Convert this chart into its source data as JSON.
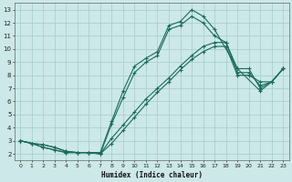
{
  "xlabel": "Humidex (Indice chaleur)",
  "background_color": "#cce8e8",
  "grid_color": "#aacfcf",
  "line_color": "#1a6b5a",
  "xlim": [
    -0.5,
    23.5
  ],
  "ylim": [
    1.5,
    13.5
  ],
  "xticks": [
    0,
    1,
    2,
    3,
    4,
    5,
    6,
    7,
    8,
    9,
    10,
    11,
    12,
    13,
    14,
    15,
    16,
    17,
    18,
    19,
    20,
    21,
    22,
    23
  ],
  "yticks": [
    2,
    3,
    4,
    5,
    6,
    7,
    8,
    9,
    10,
    11,
    12,
    13
  ],
  "lines": [
    {
      "x": [
        0,
        1,
        2,
        3,
        4,
        5,
        6,
        7,
        8,
        9,
        10,
        11,
        12,
        13,
        14,
        15,
        16,
        17,
        19,
        21,
        22,
        23
      ],
      "y": [
        3,
        2.8,
        2.5,
        2.3,
        2.1,
        2.1,
        2.1,
        2.1,
        4.5,
        6.8,
        8.7,
        9.3,
        9.8,
        11.8,
        12.1,
        13.0,
        12.5,
        11.5,
        8.5,
        6.8,
        7.5,
        8.5
      ]
    },
    {
      "x": [
        0,
        1,
        2,
        3,
        4,
        5,
        6,
        7,
        8,
        9,
        10,
        11,
        12,
        13,
        14,
        15,
        16,
        17,
        18,
        19,
        20,
        21,
        22,
        23
      ],
      "y": [
        3,
        2.8,
        2.5,
        2.3,
        2.1,
        2.1,
        2.1,
        2.0,
        4.3,
        6.3,
        8.2,
        9.0,
        9.5,
        11.5,
        11.8,
        12.5,
        12.0,
        11.0,
        10.5,
        8.2,
        8.2,
        7.2,
        7.5,
        8.5
      ]
    },
    {
      "x": [
        0,
        1,
        2,
        3,
        4,
        5,
        6,
        7,
        8,
        9,
        10,
        11,
        12,
        13,
        14,
        15,
        16,
        17,
        18,
        19,
        20,
        21,
        22,
        23
      ],
      "y": [
        3,
        2.8,
        2.7,
        2.5,
        2.2,
        2.1,
        2.1,
        2.0,
        3.2,
        4.2,
        5.2,
        6.2,
        7.0,
        7.8,
        8.7,
        9.5,
        10.2,
        10.5,
        10.5,
        8.5,
        8.5,
        7.0,
        7.5,
        8.5
      ]
    },
    {
      "x": [
        0,
        1,
        2,
        3,
        4,
        5,
        6,
        7,
        8,
        9,
        10,
        11,
        12,
        13,
        14,
        15,
        16,
        17,
        18,
        19,
        20,
        21,
        22,
        23
      ],
      "y": [
        3,
        2.8,
        2.7,
        2.5,
        2.2,
        2.1,
        2.1,
        2.0,
        2.8,
        3.8,
        4.8,
        5.8,
        6.7,
        7.5,
        8.4,
        9.2,
        9.8,
        10.2,
        10.2,
        8.0,
        8.0,
        7.5,
        7.5,
        8.5
      ]
    }
  ]
}
